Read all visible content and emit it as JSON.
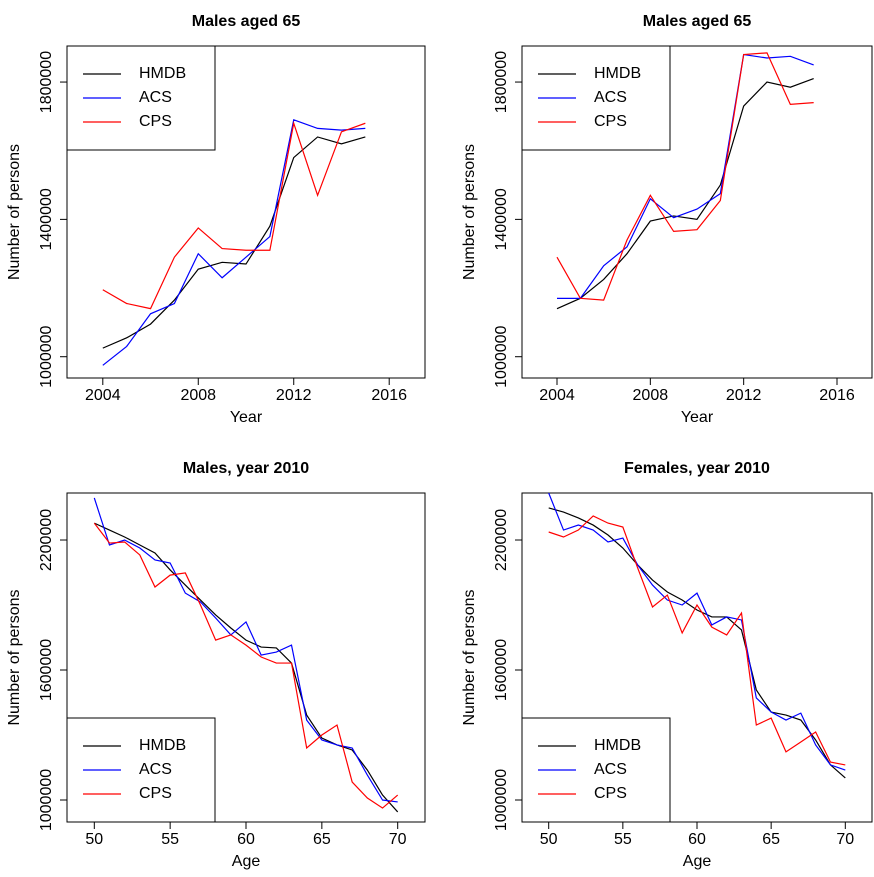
{
  "chart_data": [
    {
      "type": "line",
      "title": "Males aged 65",
      "x_label": "Year",
      "y_label": "Number of persons",
      "x": [
        2004,
        2005,
        2006,
        2007,
        2008,
        2009,
        2010,
        2011,
        2012,
        2013,
        2014,
        2015
      ],
      "xlim": [
        2002.5,
        2017.5
      ],
      "xticks": [
        2004,
        2008,
        2012,
        2016
      ],
      "ylim": [
        938000,
        1905000
      ],
      "yticks": [
        1000000,
        1400000,
        1800000
      ],
      "legend": "top-left",
      "series": [
        {
          "name": "HMDB",
          "color": "#000000",
          "values": [
            1025000,
            1055000,
            1095000,
            1165000,
            1255000,
            1275000,
            1270000,
            1380000,
            1580000,
            1640000,
            1620000,
            1640000
          ]
        },
        {
          "name": "ACS",
          "color": "#0000ff",
          "values": [
            975000,
            1030000,
            1125000,
            1155000,
            1300000,
            1230000,
            1290000,
            1350000,
            1690000,
            1665000,
            1660000,
            1665000
          ]
        },
        {
          "name": "CPS",
          "color": "#ff0000",
          "values": [
            1195000,
            1155000,
            1140000,
            1290000,
            1375000,
            1315000,
            1310000,
            1310000,
            1680000,
            1470000,
            1655000,
            1680000
          ]
        }
      ]
    },
    {
      "type": "line",
      "title": "Males aged 65",
      "x_label": "Year",
      "y_label": "Number of persons",
      "x": [
        2004,
        2005,
        2006,
        2007,
        2008,
        2009,
        2010,
        2011,
        2012,
        2013,
        2014,
        2015
      ],
      "xlim": [
        2002.5,
        2017.5
      ],
      "xticks": [
        2004,
        2008,
        2012,
        2016
      ],
      "ylim": [
        938000,
        1905000
      ],
      "yticks": [
        1000000,
        1400000,
        1800000
      ],
      "legend": "top-left",
      "series": [
        {
          "name": "HMDB",
          "color": "#000000",
          "values": [
            1140000,
            1170000,
            1225000,
            1300000,
            1395000,
            1410000,
            1400000,
            1500000,
            1730000,
            1800000,
            1785000,
            1810000
          ]
        },
        {
          "name": "ACS",
          "color": "#0000ff",
          "values": [
            1170000,
            1170000,
            1265000,
            1320000,
            1460000,
            1405000,
            1430000,
            1475000,
            1880000,
            1870000,
            1875000,
            1850000
          ]
        },
        {
          "name": "CPS",
          "color": "#ff0000",
          "values": [
            1290000,
            1170000,
            1165000,
            1340000,
            1470000,
            1365000,
            1370000,
            1455000,
            1880000,
            1885000,
            1735000,
            1740000
          ]
        }
      ]
    },
    {
      "type": "line",
      "title": "Males, year 2010",
      "x_label": "Age",
      "y_label": "Number of persons",
      "x": [
        50,
        51,
        52,
        53,
        54,
        55,
        56,
        57,
        58,
        59,
        60,
        61,
        62,
        63,
        64,
        65,
        66,
        67,
        68,
        69,
        70
      ],
      "xlim": [
        48.2,
        71.8
      ],
      "xticks": [
        50,
        55,
        60,
        65,
        70
      ],
      "ylim": [
        898500,
        2417000
      ],
      "yticks": [
        1000000,
        1600000,
        2200000
      ],
      "legend": "bottom-left",
      "series": [
        {
          "name": "HMDB",
          "color": "#000000",
          "values": [
            2278000,
            2246000,
            2214000,
            2177000,
            2140000,
            2062000,
            1992000,
            1923000,
            1854000,
            1794000,
            1738000,
            1706000,
            1702000,
            1632000,
            1392000,
            1286000,
            1254000,
            1231000,
            1138000,
            1023000,
            945000
          ]
        },
        {
          "name": "ACS",
          "color": "#0000ff",
          "values": [
            2394000,
            2177000,
            2200000,
            2163000,
            2108000,
            2094000,
            1955000,
            1914000,
            1840000,
            1762000,
            1822000,
            1669000,
            1683000,
            1715000,
            1369000,
            1277000,
            1254000,
            1240000,
            1115000,
            1000000,
            991000
          ]
        },
        {
          "name": "CPS",
          "color": "#ff0000",
          "values": [
            2278000,
            2186000,
            2191000,
            2131000,
            1983000,
            2038000,
            2048000,
            1900000,
            1738000,
            1762000,
            1715000,
            1660000,
            1632000,
            1632000,
            1240000,
            1300000,
            1346000,
            1083000,
            1009000,
            963000,
            1023000
          ]
        }
      ]
    },
    {
      "type": "line",
      "title": "Females, year 2010",
      "x_label": "Age",
      "y_label": "Number of persons",
      "x": [
        50,
        51,
        52,
        53,
        54,
        55,
        56,
        57,
        58,
        59,
        60,
        61,
        62,
        63,
        64,
        65,
        66,
        67,
        68,
        69,
        70
      ],
      "xlim": [
        48.2,
        71.8
      ],
      "xticks": [
        50,
        55,
        60,
        65,
        70
      ],
      "ylim": [
        898500,
        2417000
      ],
      "yticks": [
        1000000,
        1600000,
        2200000
      ],
      "legend": "bottom-left",
      "series": [
        {
          "name": "HMDB",
          "color": "#000000",
          "values": [
            2348000,
            2329000,
            2302000,
            2269000,
            2223000,
            2163000,
            2085000,
            2015000,
            1960000,
            1923000,
            1877000,
            1845000,
            1845000,
            1785000,
            1508000,
            1406000,
            1392000,
            1369000,
            1277000,
            1162000,
            1102000
          ]
        },
        {
          "name": "ACS",
          "color": "#0000ff",
          "values": [
            2417000,
            2246000,
            2269000,
            2246000,
            2191000,
            2209000,
            2085000,
            1992000,
            1923000,
            1900000,
            1955000,
            1808000,
            1845000,
            1831000,
            1471000,
            1406000,
            1369000,
            1401000,
            1254000,
            1162000,
            1138000
          ]
        },
        {
          "name": "CPS",
          "color": "#ff0000",
          "values": [
            2237000,
            2214000,
            2246000,
            2311000,
            2278000,
            2260000,
            2071000,
            1891000,
            1946000,
            1771000,
            1900000,
            1798000,
            1762000,
            1863000,
            1346000,
            1378000,
            1222000,
            1268000,
            1314000,
            1175000,
            1162000
          ]
        }
      ]
    }
  ]
}
